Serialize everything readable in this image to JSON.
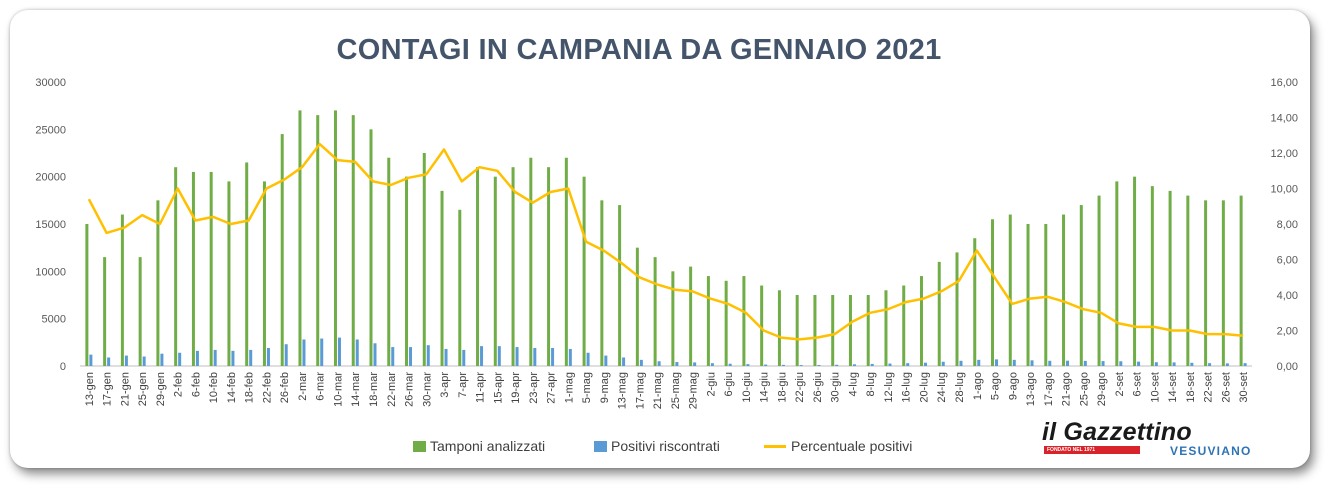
{
  "chart_data": {
    "type": "bar",
    "title": "CONTAGI IN CAMPANIA DA GENNAIO 2021",
    "categories": [
      "13-gen",
      "17-gen",
      "21-gen",
      "25-gen",
      "29-gen",
      "2-feb",
      "6-feb",
      "10-feb",
      "14-feb",
      "18-feb",
      "22-feb",
      "26-feb",
      "2-mar",
      "6-mar",
      "10-mar",
      "14-mar",
      "18-mar",
      "22-mar",
      "26-mar",
      "30-mar",
      "3-apr",
      "7-apr",
      "11-apr",
      "15-apr",
      "19-apr",
      "23-apr",
      "27-apr",
      "1-mag",
      "5-mag",
      "9-mag",
      "13-mag",
      "17-mag",
      "21-mag",
      "25-mag",
      "29-mag",
      "2-giu",
      "6-giu",
      "10-giu",
      "14-giu",
      "18-giu",
      "22-giu",
      "26-giu",
      "30-giu",
      "4-lug",
      "8-lug",
      "12-lug",
      "16-lug",
      "20-lug",
      "24-lug",
      "28-lug",
      "1-ago",
      "5-ago",
      "9-ago",
      "13-ago",
      "17-ago",
      "21-ago",
      "25-ago",
      "29-ago",
      "2-set",
      "6-set",
      "10-set",
      "14-set",
      "18-set",
      "22-set",
      "26-set",
      "30-set"
    ],
    "y_left": {
      "range": [
        0,
        30000
      ],
      "ticks": [
        "0",
        "5000",
        "10000",
        "15000",
        "20000",
        "25000",
        "30000"
      ]
    },
    "y_right": {
      "range": [
        0,
        16
      ],
      "ticks": [
        "0,00",
        "2,00",
        "4,00",
        "6,00",
        "8,00",
        "10,00",
        "12,00",
        "14,00",
        "16,00"
      ]
    },
    "grid": false,
    "legend_position": "bottom",
    "series": [
      {
        "name": "Tamponi analizzati",
        "kind": "bar",
        "axis": "left",
        "color": "#70ad47",
        "values": [
          15000,
          11500,
          16000,
          11500,
          17500,
          21000,
          20500,
          20500,
          19500,
          21500,
          19500,
          24500,
          27000,
          26500,
          27000,
          26500,
          25000,
          22000,
          20000,
          22500,
          18500,
          16500,
          21000,
          20000,
          21000,
          22000,
          21000,
          22000,
          20000,
          17500,
          17000,
          12500,
          11500,
          10000,
          10500,
          9500,
          9000,
          9500,
          8500,
          8000,
          7500,
          7500,
          7500,
          7500,
          7500,
          8000,
          8500,
          9500,
          11000,
          12000,
          13500,
          15500,
          16000,
          15000,
          15000,
          16000,
          17000,
          18000,
          19500,
          20000,
          19000,
          18500,
          18000,
          17500,
          17500,
          18000
        ]
      },
      {
        "name": "Positivi riscontrati",
        "kind": "bar",
        "axis": "left",
        "color": "#5b9bd5",
        "values": [
          1200,
          900,
          1100,
          1000,
          1300,
          1400,
          1600,
          1700,
          1600,
          1700,
          1900,
          2300,
          2800,
          2900,
          3000,
          2800,
          2400,
          2000,
          2000,
          2200,
          1800,
          1700,
          2100,
          2100,
          2000,
          1900,
          1900,
          1800,
          1400,
          1100,
          900,
          650,
          500,
          420,
          380,
          300,
          240,
          200,
          150,
          120,
          100,
          110,
          130,
          180,
          220,
          260,
          300,
          350,
          450,
          550,
          650,
          700,
          650,
          600,
          550,
          560,
          540,
          520,
          500,
          460,
          400,
          380,
          340,
          300,
          280,
          300
        ]
      },
      {
        "name": "Percentuale positivi",
        "kind": "line",
        "axis": "right",
        "color": "#ffc000",
        "values": [
          9.4,
          7.5,
          7.8,
          8.5,
          8.0,
          10.0,
          8.2,
          8.4,
          8.0,
          8.2,
          10.0,
          10.5,
          11.2,
          12.5,
          11.6,
          11.5,
          10.4,
          10.2,
          10.6,
          10.8,
          12.2,
          10.4,
          11.2,
          11.0,
          9.8,
          9.2,
          9.8,
          10.0,
          7.0,
          6.5,
          5.8,
          5.0,
          4.6,
          4.3,
          4.2,
          3.8,
          3.5,
          3.0,
          2.0,
          1.6,
          1.5,
          1.6,
          1.8,
          2.5,
          3.0,
          3.2,
          3.6,
          3.8,
          4.2,
          4.8,
          6.5,
          5.0,
          3.5,
          3.8,
          3.9,
          3.6,
          3.2,
          3.0,
          2.4,
          2.2,
          2.2,
          2.0,
          2.0,
          1.8,
          1.8,
          1.7
        ]
      }
    ]
  },
  "logo": {
    "brand": "il Gazzettino",
    "tagline": "FONDATO NEL 1971",
    "sub": "VESUVIANO"
  }
}
